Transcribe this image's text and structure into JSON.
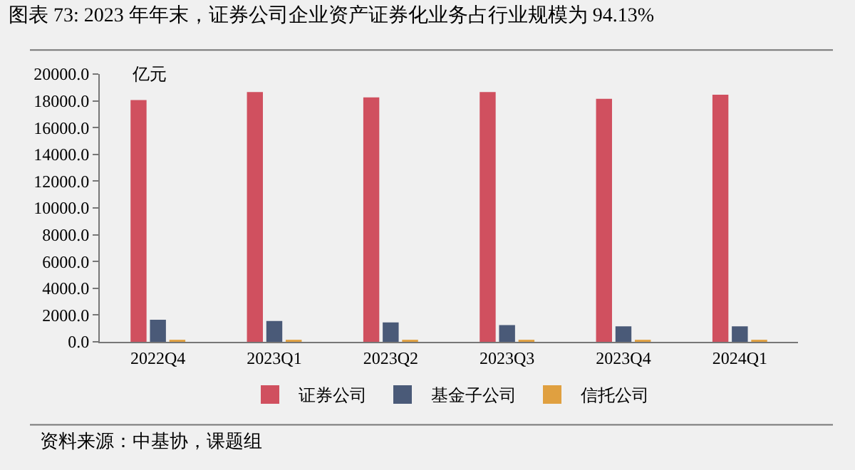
{
  "chart_data": {
    "type": "bar",
    "title": "图表 73: 2023 年年末，证券公司企业资产证券化业务占行业规模为 94.13%",
    "ylabel": "亿元",
    "categories": [
      "2022Q4",
      "2023Q1",
      "2023Q2",
      "2023Q3",
      "2023Q4",
      "2024Q1"
    ],
    "series": [
      {
        "name": "证券公司",
        "color": "#d0505f",
        "values": [
          18000,
          18600,
          18200,
          18600,
          18100,
          18400
        ]
      },
      {
        "name": "基金子公司",
        "color": "#4a5a78",
        "values": [
          1600,
          1500,
          1400,
          1200,
          1100,
          1100
        ]
      },
      {
        "name": "信托公司",
        "color": "#e0a040",
        "values": [
          100,
          100,
          100,
          100,
          100,
          100
        ]
      }
    ],
    "ylim": [
      0,
      20000
    ],
    "yticks": [
      {
        "value": 0,
        "label": "0.0"
      },
      {
        "value": 2000,
        "label": "2000.0"
      },
      {
        "value": 4000,
        "label": "4000.0"
      },
      {
        "value": 6000,
        "label": "6000.0"
      },
      {
        "value": 8000,
        "label": "8000.0"
      },
      {
        "value": 10000,
        "label": "10000.0"
      },
      {
        "value": 12000,
        "label": "12000.0"
      },
      {
        "value": 14000,
        "label": "14000.0"
      },
      {
        "value": 16000,
        "label": "16000.0"
      },
      {
        "value": 18000,
        "label": "18000.0"
      },
      {
        "value": 20000,
        "label": "20000.0"
      }
    ],
    "grid": false,
    "legend": "bottom",
    "annotations": [
      "资料来源：中基协，课题组"
    ]
  }
}
